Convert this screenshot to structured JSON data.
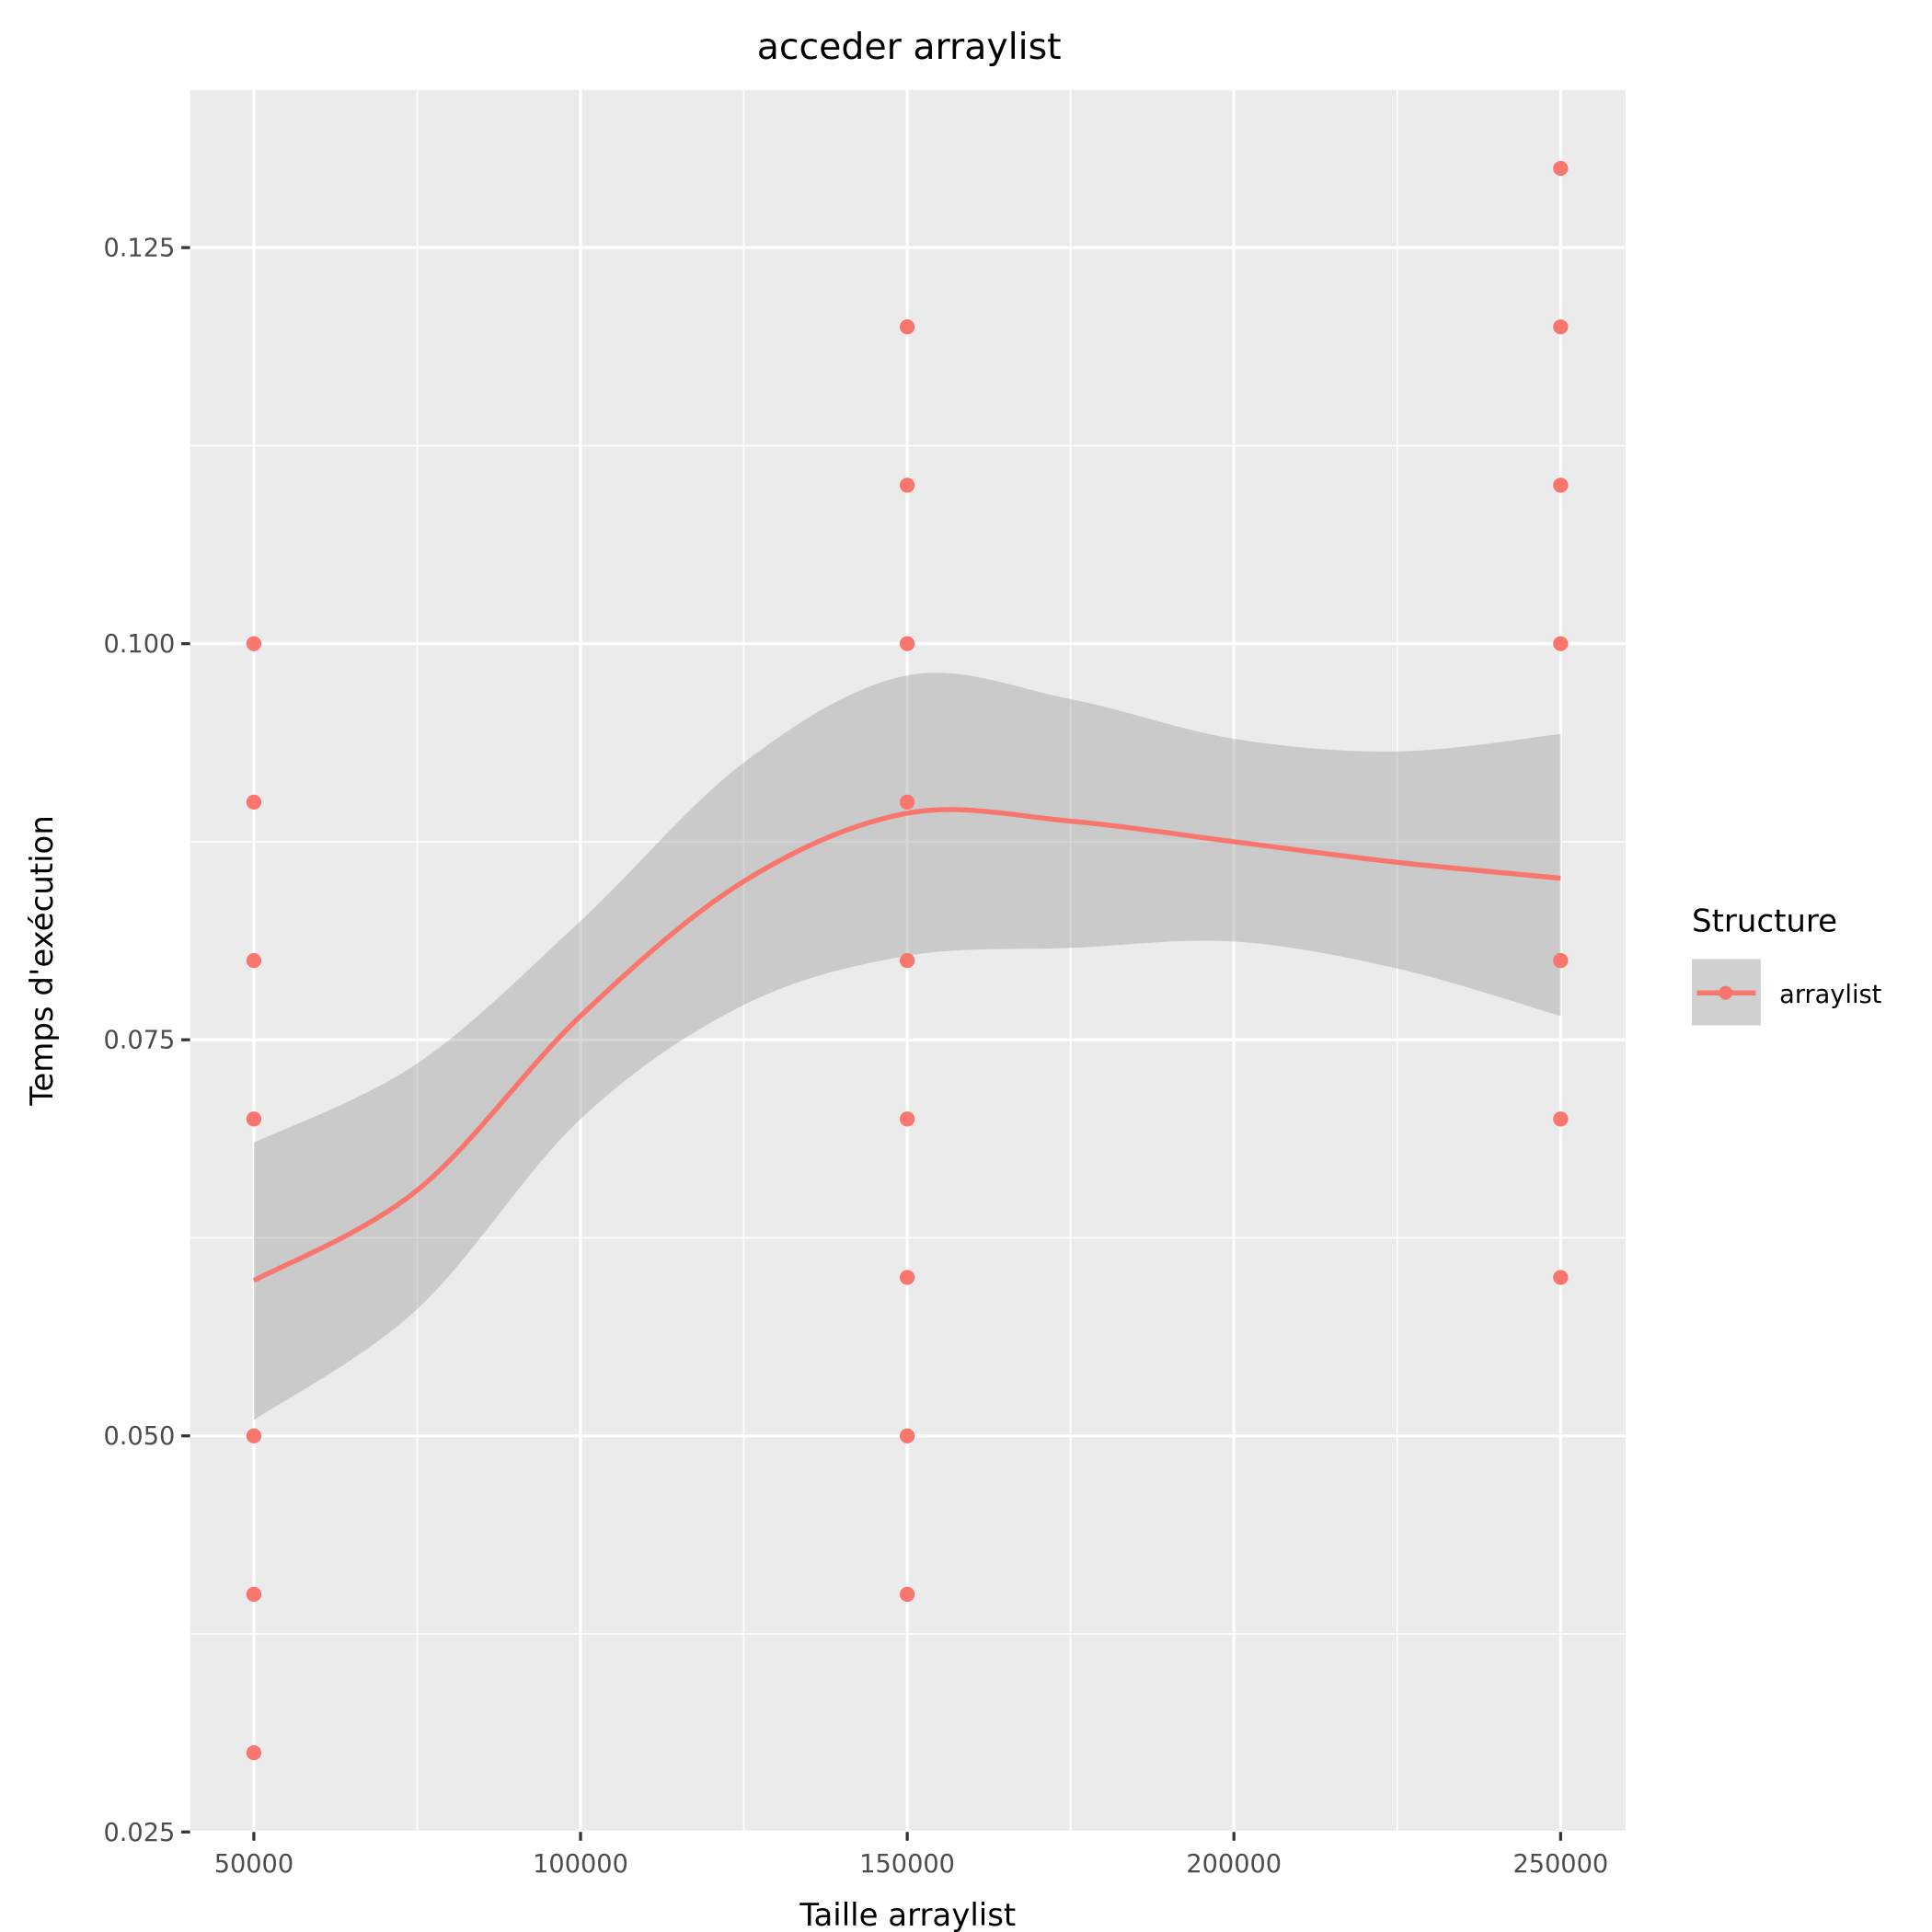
{
  "chart_data": {
    "type": "scatter",
    "title": "acceder arraylist",
    "xlabel": "Taille arraylist",
    "ylabel": "Temps d'exécution",
    "xlim": [
      40000,
      260000
    ],
    "ylim": [
      0.025,
      0.1346
    ],
    "x_ticks": [
      50000,
      100000,
      150000,
      200000,
      250000
    ],
    "x_tick_labels": [
      "50000",
      "100000",
      "150000",
      "200000",
      "250000"
    ],
    "y_ticks": [
      0.025,
      0.05,
      0.075,
      0.1,
      0.125
    ],
    "y_tick_labels": [
      "0.025",
      "0.050",
      "0.075",
      "0.100",
      "0.125"
    ],
    "grid": true,
    "legend": {
      "title": "Structure",
      "entries": [
        "arraylist"
      ],
      "placement": "right"
    },
    "series": [
      {
        "name": "arraylist",
        "color": "#F8766D",
        "points": [
          [
            50000,
            0.1
          ],
          [
            50000,
            0.09
          ],
          [
            50000,
            0.08
          ],
          [
            50000,
            0.07
          ],
          [
            50000,
            0.05
          ],
          [
            50000,
            0.04
          ],
          [
            50000,
            0.03
          ],
          [
            150000,
            0.12
          ],
          [
            150000,
            0.11
          ],
          [
            150000,
            0.1
          ],
          [
            150000,
            0.09
          ],
          [
            150000,
            0.08
          ],
          [
            150000,
            0.07
          ],
          [
            150000,
            0.06
          ],
          [
            150000,
            0.05
          ],
          [
            150000,
            0.04
          ],
          [
            250000,
            0.13
          ],
          [
            250000,
            0.12
          ],
          [
            250000,
            0.11
          ],
          [
            250000,
            0.1
          ],
          [
            250000,
            0.08
          ],
          [
            250000,
            0.07
          ],
          [
            250000,
            0.06
          ]
        ]
      }
    ],
    "smooth": {
      "x": [
        50000,
        75000,
        100000,
        125000,
        150000,
        175000,
        200000,
        225000,
        250000
      ],
      "fit": [
        0.0598,
        0.0655,
        0.0765,
        0.085,
        0.0893,
        0.0888,
        0.0875,
        0.0862,
        0.0852
      ],
      "upper": [
        0.0685,
        0.0735,
        0.0825,
        0.0925,
        0.098,
        0.0965,
        0.094,
        0.0932,
        0.0943
      ],
      "lower": [
        0.051,
        0.058,
        0.07,
        0.0772,
        0.0803,
        0.0808,
        0.0812,
        0.0795,
        0.0765
      ],
      "band_color": "#999999"
    }
  }
}
